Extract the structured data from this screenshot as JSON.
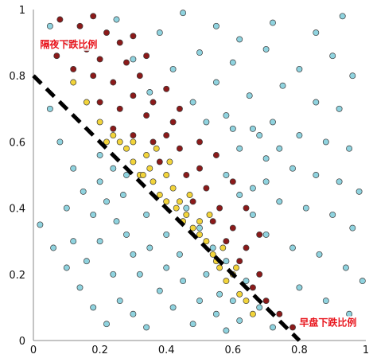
{
  "chart_data": {
    "type": "scatter",
    "title": "",
    "xlabel": "",
    "ylabel": "",
    "xlim": [
      0,
      1
    ],
    "ylim": [
      0,
      1
    ],
    "x_ticks": [
      "0",
      "0.2",
      "0.4",
      "0.6",
      "0.8",
      "1"
    ],
    "y_ticks": [
      "0",
      "0.2",
      "0.4",
      "0.6",
      "0.8",
      "1"
    ],
    "grid": false,
    "annotations": [
      {
        "text": "隔夜下跌比例",
        "x": 0.02,
        "y": 0.885
      },
      {
        "text": "早盘下跌比例",
        "x": 0.8,
        "y": 0.045
      }
    ],
    "reference_line": {
      "style": "dashed",
      "color": "#000000",
      "from": [
        0.0,
        0.8
      ],
      "to": [
        0.8,
        0.0
      ]
    },
    "series": [
      {
        "color": "#8fd3df",
        "values": [
          [
            0.05,
            0.95
          ],
          [
            0.12,
            0.9
          ],
          [
            0.25,
            0.97
          ],
          [
            0.38,
            0.93
          ],
          [
            0.45,
            0.99
          ],
          [
            0.55,
            0.95
          ],
          [
            0.62,
            0.91
          ],
          [
            0.72,
            0.96
          ],
          [
            0.85,
            0.93
          ],
          [
            0.93,
            0.98
          ],
          [
            0.3,
            0.85
          ],
          [
            0.42,
            0.82
          ],
          [
            0.5,
            0.87
          ],
          [
            0.6,
            0.84
          ],
          [
            0.7,
            0.88
          ],
          [
            0.8,
            0.82
          ],
          [
            0.9,
            0.86
          ],
          [
            0.96,
            0.8
          ],
          [
            0.35,
            0.75
          ],
          [
            0.48,
            0.72
          ],
          [
            0.55,
            0.78
          ],
          [
            0.65,
            0.74
          ],
          [
            0.75,
            0.77
          ],
          [
            0.85,
            0.72
          ],
          [
            0.92,
            0.7
          ],
          [
            0.58,
            0.68
          ],
          [
            0.66,
            0.64
          ],
          [
            0.72,
            0.66
          ],
          [
            0.8,
            0.62
          ],
          [
            0.88,
            0.6
          ],
          [
            0.95,
            0.58
          ],
          [
            0.62,
            0.58
          ],
          [
            0.7,
            0.55
          ],
          [
            0.78,
            0.52
          ],
          [
            0.85,
            0.5
          ],
          [
            0.92,
            0.48
          ],
          [
            0.98,
            0.45
          ],
          [
            0.66,
            0.46
          ],
          [
            0.74,
            0.42
          ],
          [
            0.82,
            0.4
          ],
          [
            0.9,
            0.38
          ],
          [
            0.96,
            0.34
          ],
          [
            0.7,
            0.32
          ],
          [
            0.78,
            0.28
          ],
          [
            0.86,
            0.26
          ],
          [
            0.94,
            0.22
          ],
          [
            0.99,
            0.18
          ],
          [
            0.8,
            0.16
          ],
          [
            0.88,
            0.12
          ],
          [
            0.95,
            0.08
          ],
          [
            0.05,
            0.7
          ],
          [
            0.08,
            0.6
          ],
          [
            0.12,
            0.52
          ],
          [
            0.15,
            0.45
          ],
          [
            0.1,
            0.4
          ],
          [
            0.18,
            0.38
          ],
          [
            0.22,
            0.42
          ],
          [
            0.25,
            0.36
          ],
          [
            0.2,
            0.3
          ],
          [
            0.28,
            0.32
          ],
          [
            0.3,
            0.26
          ],
          [
            0.35,
            0.28
          ],
          [
            0.32,
            0.2
          ],
          [
            0.4,
            0.22
          ],
          [
            0.38,
            0.15
          ],
          [
            0.45,
            0.18
          ],
          [
            0.42,
            0.1
          ],
          [
            0.5,
            0.12
          ],
          [
            0.48,
            0.05
          ],
          [
            0.55,
            0.08
          ],
          [
            0.58,
            0.03
          ],
          [
            0.62,
            0.06
          ],
          [
            0.02,
            0.35
          ],
          [
            0.06,
            0.28
          ],
          [
            0.1,
            0.22
          ],
          [
            0.14,
            0.16
          ],
          [
            0.18,
            0.1
          ],
          [
            0.22,
            0.05
          ],
          [
            0.26,
            0.12
          ],
          [
            0.3,
            0.08
          ],
          [
            0.34,
            0.04
          ],
          [
            0.16,
            0.24
          ],
          [
            0.24,
            0.2
          ],
          [
            0.12,
            0.3
          ],
          [
            0.2,
            0.48
          ],
          [
            0.27,
            0.44
          ],
          [
            0.34,
            0.38
          ],
          [
            0.4,
            0.32
          ],
          [
            0.44,
            0.26
          ],
          [
            0.52,
            0.2
          ],
          [
            0.56,
            0.14
          ],
          [
            0.6,
            0.12
          ],
          [
            0.64,
            0.18
          ],
          [
            0.68,
            0.1
          ],
          [
            0.72,
            0.04
          ],
          [
            0.46,
            0.4
          ],
          [
            0.5,
            0.34
          ],
          [
            0.54,
            0.28
          ],
          [
            0.58,
            0.24
          ],
          [
            0.2,
            0.56
          ],
          [
            0.24,
            0.52
          ],
          [
            0.28,
            0.5
          ],
          [
            0.58,
            0.5
          ],
          [
            0.62,
            0.44
          ],
          [
            0.66,
            0.38
          ],
          [
            0.7,
            0.48
          ],
          [
            0.74,
            0.58
          ],
          [
            0.68,
            0.62
          ],
          [
            0.6,
            0.64
          ],
          [
            0.52,
            0.66
          ]
        ]
      },
      {
        "color": "#8b1a1a",
        "values": [
          [
            0.08,
            0.97
          ],
          [
            0.14,
            0.95
          ],
          [
            0.18,
            0.98
          ],
          [
            0.22,
            0.93
          ],
          [
            0.1,
            0.9
          ],
          [
            0.16,
            0.88
          ],
          [
            0.2,
            0.85
          ],
          [
            0.26,
            0.9
          ],
          [
            0.12,
            0.82
          ],
          [
            0.18,
            0.8
          ],
          [
            0.24,
            0.78
          ],
          [
            0.28,
            0.84
          ],
          [
            0.32,
            0.8
          ],
          [
            0.2,
            0.72
          ],
          [
            0.26,
            0.7
          ],
          [
            0.3,
            0.74
          ],
          [
            0.34,
            0.68
          ],
          [
            0.24,
            0.64
          ],
          [
            0.3,
            0.62
          ],
          [
            0.36,
            0.6
          ],
          [
            0.4,
            0.62
          ],
          [
            0.44,
            0.58
          ],
          [
            0.38,
            0.54
          ],
          [
            0.46,
            0.5
          ],
          [
            0.5,
            0.52
          ],
          [
            0.52,
            0.46
          ],
          [
            0.48,
            0.42
          ],
          [
            0.56,
            0.4
          ],
          [
            0.54,
            0.36
          ],
          [
            0.6,
            0.34
          ],
          [
            0.58,
            0.3
          ],
          [
            0.64,
            0.28
          ],
          [
            0.62,
            0.24
          ],
          [
            0.68,
            0.2
          ],
          [
            0.66,
            0.16
          ],
          [
            0.7,
            0.12
          ],
          [
            0.74,
            0.08
          ],
          [
            0.78,
            0.04
          ],
          [
            0.42,
            0.66
          ],
          [
            0.36,
            0.72
          ],
          [
            0.07,
            0.86
          ],
          [
            0.3,
            0.92
          ],
          [
            0.34,
            0.86
          ],
          [
            0.4,
            0.76
          ],
          [
            0.44,
            0.7
          ],
          [
            0.5,
            0.6
          ],
          [
            0.55,
            0.56
          ],
          [
            0.6,
            0.48
          ],
          [
            0.64,
            0.4
          ],
          [
            0.68,
            0.32
          ]
        ]
      },
      {
        "color": "#f2d43a",
        "values": [
          [
            0.24,
            0.62
          ],
          [
            0.28,
            0.58
          ],
          [
            0.3,
            0.54
          ],
          [
            0.32,
            0.5
          ],
          [
            0.34,
            0.56
          ],
          [
            0.36,
            0.48
          ],
          [
            0.38,
            0.44
          ],
          [
            0.4,
            0.5
          ],
          [
            0.42,
            0.46
          ],
          [
            0.44,
            0.42
          ],
          [
            0.46,
            0.38
          ],
          [
            0.48,
            0.34
          ],
          [
            0.5,
            0.36
          ],
          [
            0.52,
            0.3
          ],
          [
            0.54,
            0.26
          ],
          [
            0.56,
            0.22
          ],
          [
            0.58,
            0.18
          ],
          [
            0.6,
            0.2
          ],
          [
            0.62,
            0.14
          ],
          [
            0.64,
            0.12
          ],
          [
            0.66,
            0.08
          ],
          [
            0.3,
            0.6
          ],
          [
            0.35,
            0.52
          ],
          [
            0.4,
            0.42
          ],
          [
            0.45,
            0.36
          ],
          [
            0.5,
            0.32
          ],
          [
            0.55,
            0.24
          ],
          [
            0.26,
            0.6
          ],
          [
            0.33,
            0.5
          ],
          [
            0.43,
            0.4
          ],
          [
            0.12,
            0.78
          ],
          [
            0.16,
            0.72
          ],
          [
            0.2,
            0.66
          ],
          [
            0.22,
            0.6
          ],
          [
            0.47,
            0.44
          ],
          [
            0.53,
            0.38
          ],
          [
            0.57,
            0.28
          ],
          [
            0.61,
            0.22
          ],
          [
            0.37,
            0.58
          ],
          [
            0.41,
            0.54
          ]
        ]
      }
    ]
  }
}
